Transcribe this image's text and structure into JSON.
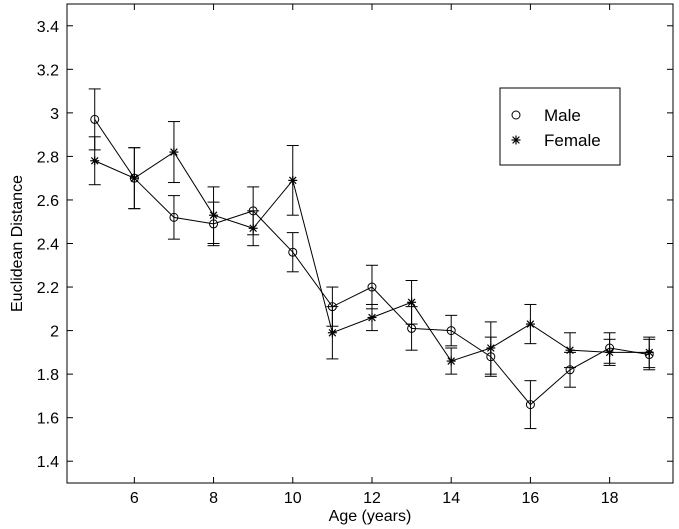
{
  "chart_data": {
    "type": "line",
    "title": "",
    "xlabel": "Age (years)",
    "ylabel": "Euclidean Distance",
    "xlim": [
      4.3,
      19.6
    ],
    "ylim": [
      1.3,
      3.5
    ],
    "xticks": [
      6,
      8,
      10,
      12,
      14,
      16,
      18
    ],
    "yticks": [
      1.4,
      1.6,
      1.8,
      2,
      2.2,
      2.4,
      2.6,
      2.8,
      3,
      3.2,
      3.4
    ],
    "ytick_labels": [
      "1.4",
      "1.6",
      "1.8",
      "2",
      "2.2",
      "2.4",
      "2.6",
      "2.8",
      "3",
      "3.2",
      "3.4"
    ],
    "grid": false,
    "legend_position": "top-right",
    "series": [
      {
        "name": "Male",
        "marker": "circle",
        "x": [
          5,
          6,
          7,
          8,
          9,
          10,
          11,
          12,
          13,
          14,
          15,
          16,
          17,
          18,
          19
        ],
        "y": [
          2.97,
          2.7,
          2.52,
          2.49,
          2.55,
          2.36,
          2.11,
          2.2,
          2.01,
          2.0,
          1.88,
          1.66,
          1.82,
          1.92,
          1.89
        ],
        "err": [
          0.14,
          0.14,
          0.1,
          0.1,
          0.11,
          0.09,
          0.09,
          0.1,
          0.1,
          0.07,
          0.09,
          0.11,
          0.08,
          0.07,
          0.07
        ]
      },
      {
        "name": "Female",
        "marker": "asterisk",
        "x": [
          5,
          6,
          7,
          8,
          9,
          10,
          11,
          12,
          13,
          14,
          15,
          16,
          17,
          18,
          19
        ],
        "y": [
          2.78,
          2.7,
          2.82,
          2.53,
          2.47,
          2.69,
          1.99,
          2.06,
          2.13,
          1.86,
          1.92,
          2.03,
          1.91,
          1.9,
          1.9
        ],
        "err": [
          0.11,
          0.14,
          0.14,
          0.13,
          0.08,
          0.16,
          0.12,
          0.06,
          0.1,
          0.06,
          0.12,
          0.09,
          0.08,
          0.06,
          0.07
        ]
      }
    ]
  }
}
